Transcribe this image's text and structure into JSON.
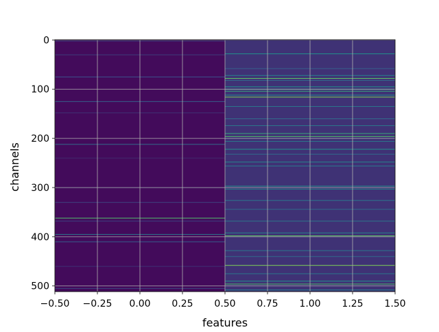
{
  "chart_data": {
    "type": "heatmap",
    "title": "",
    "xlabel": "features",
    "ylabel": "channels",
    "xlim": [
      -0.5,
      1.5
    ],
    "ylim": [
      511.5,
      -0.5
    ],
    "x_ticks": [
      -0.5,
      -0.25,
      0.0,
      0.25,
      0.5,
      0.75,
      1.0,
      1.25,
      1.5
    ],
    "x_tick_labels": [
      "−0.50",
      "−0.25",
      "0.00",
      "0.25",
      "0.50",
      "0.75",
      "1.00",
      "1.25",
      "1.50"
    ],
    "y_ticks": [
      0,
      100,
      200,
      300,
      400,
      500
    ],
    "y_tick_labels": [
      "0",
      "100",
      "200",
      "300",
      "400",
      "500"
    ],
    "grid": true,
    "colormap": "viridis",
    "background_color": "#440154",
    "columns": [
      {
        "feature": 0,
        "baseline": 0.03,
        "highlights": [
          {
            "channel": 2,
            "value": 0.2
          },
          {
            "channel": 30,
            "value": 0.18
          },
          {
            "channel": 75,
            "value": 0.25
          },
          {
            "channel": 125,
            "value": 0.3
          },
          {
            "channel": 148,
            "value": 0.15
          },
          {
            "channel": 212,
            "value": 0.35
          },
          {
            "channel": 240,
            "value": 0.12
          },
          {
            "channel": 300,
            "value": 0.15
          },
          {
            "channel": 330,
            "value": 0.2
          },
          {
            "channel": 362,
            "value": 0.7
          },
          {
            "channel": 368,
            "value": 0.2
          },
          {
            "channel": 395,
            "value": 0.4
          },
          {
            "channel": 410,
            "value": 0.3
          },
          {
            "channel": 460,
            "value": 0.15
          },
          {
            "channel": 505,
            "value": 0.2
          }
        ]
      },
      {
        "feature": 1,
        "baseline": 0.15,
        "highlights": [
          {
            "channel": 28,
            "value": 0.5
          },
          {
            "channel": 58,
            "value": 0.3
          },
          {
            "channel": 72,
            "value": 0.45
          },
          {
            "channel": 78,
            "value": 0.75
          },
          {
            "channel": 82,
            "value": 0.35
          },
          {
            "channel": 95,
            "value": 0.5
          },
          {
            "channel": 100,
            "value": 0.55
          },
          {
            "channel": 104,
            "value": 0.6
          },
          {
            "channel": 112,
            "value": 0.5
          },
          {
            "channel": 116,
            "value": 0.8
          },
          {
            "channel": 135,
            "value": 0.4
          },
          {
            "channel": 160,
            "value": 0.35
          },
          {
            "channel": 174,
            "value": 0.4
          },
          {
            "channel": 190,
            "value": 0.6
          },
          {
            "channel": 196,
            "value": 0.7
          },
          {
            "channel": 206,
            "value": 0.4
          },
          {
            "channel": 222,
            "value": 0.5
          },
          {
            "channel": 232,
            "value": 0.35
          },
          {
            "channel": 248,
            "value": 0.45
          },
          {
            "channel": 256,
            "value": 0.4
          },
          {
            "channel": 297,
            "value": 0.5
          },
          {
            "channel": 303,
            "value": 0.45
          },
          {
            "channel": 326,
            "value": 0.4
          },
          {
            "channel": 344,
            "value": 0.35
          },
          {
            "channel": 368,
            "value": 0.4
          },
          {
            "channel": 392,
            "value": 0.45
          },
          {
            "channel": 398,
            "value": 0.75
          },
          {
            "channel": 428,
            "value": 0.4
          },
          {
            "channel": 440,
            "value": 0.35
          },
          {
            "channel": 458,
            "value": 0.8
          },
          {
            "channel": 475,
            "value": 0.4
          },
          {
            "channel": 490,
            "value": 0.5
          },
          {
            "channel": 496,
            "value": 0.7
          },
          {
            "channel": 508,
            "value": 0.45
          }
        ]
      }
    ]
  }
}
